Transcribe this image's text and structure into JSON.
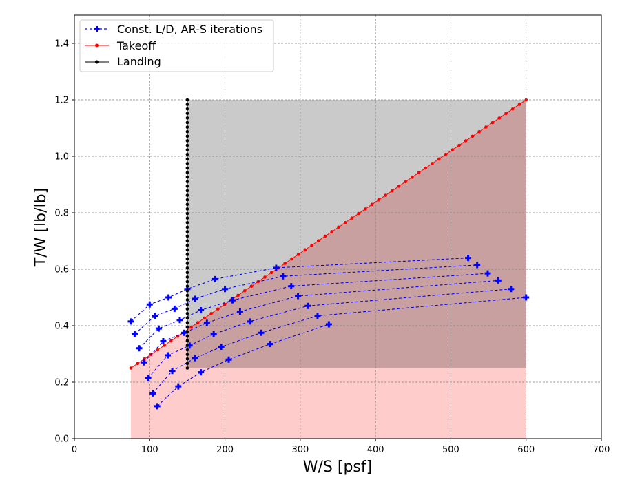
{
  "chart_data": {
    "type": "line",
    "title": "",
    "xlabel": "W/S [psf]",
    "ylabel": "T/W [lb/lb]",
    "xlim": [
      0,
      700
    ],
    "ylim": [
      0,
      1.5
    ],
    "xticks": [
      0,
      100,
      200,
      300,
      400,
      500,
      600,
      700
    ],
    "yticks": [
      0.0,
      0.2,
      0.4,
      0.6,
      0.8,
      1.0,
      1.2,
      1.4
    ],
    "xtick_labels": [
      "0",
      "100",
      "200",
      "300",
      "400",
      "500",
      "600",
      "700"
    ],
    "ytick_labels": [
      "0.0",
      "0.2",
      "0.4",
      "0.6",
      "0.8",
      "1.0",
      "1.2",
      "1.4"
    ],
    "grid": true,
    "legend_position": "top-left",
    "legend": [
      "Const. L/D, AR-S iterations",
      "Takeoff",
      "Landing"
    ],
    "colors": {
      "iterations": "#0000ff",
      "takeoff": "#ff0000",
      "landing": "#000000",
      "grey_region": "#cacaca",
      "pink_region": "#ffcccc",
      "overlap_region": "#c9a0a0"
    },
    "regions": [
      {
        "name": "landing-feasible",
        "x": [
          150,
          600
        ],
        "y": [
          0,
          1.2
        ]
      },
      {
        "name": "takeoff-min-thrust",
        "x": [
          75,
          600
        ],
        "y": [
          0,
          0.25
        ]
      },
      {
        "name": "takeoff-feasible",
        "polygon": [
          [
            75,
            0.25
          ],
          [
            600,
            1.2
          ],
          [
            600,
            0
          ]
        ]
      }
    ],
    "series": [
      {
        "name": "Const. L/D, AR-S iterations",
        "style": "dashed-plus",
        "curves": [
          {
            "x": [
              75,
              100,
              125,
              150,
              187,
              268,
              523
            ],
            "y": [
              0.415,
              0.475,
              0.5,
              0.53,
              0.565,
              0.605,
              0.64
            ]
          },
          {
            "x": [
              80,
              107,
              133,
              160,
              200,
              277,
              535
            ],
            "y": [
              0.37,
              0.435,
              0.46,
              0.495,
              0.53,
              0.575,
              0.615
            ]
          },
          {
            "x": [
              86,
              112,
              140,
              168,
              210,
              288,
              549
            ],
            "y": [
              0.32,
              0.39,
              0.42,
              0.455,
              0.49,
              0.54,
              0.585
            ]
          },
          {
            "x": [
              92,
              118,
              146,
              176,
              220,
              297,
              563
            ],
            "y": [
              0.27,
              0.345,
              0.375,
              0.41,
              0.45,
              0.505,
              0.56
            ]
          },
          {
            "x": [
              98,
              124,
              153,
              185,
              233,
              310,
              580
            ],
            "y": [
              0.215,
              0.295,
              0.33,
              0.37,
              0.415,
              0.47,
              0.53
            ]
          },
          {
            "x": [
              104,
              130,
              160,
              195,
              248,
              323,
              600
            ],
            "y": [
              0.16,
              0.24,
              0.285,
              0.325,
              0.375,
              0.435,
              0.5
            ]
          },
          {
            "x": [
              110,
              138,
              168,
              205,
              260,
              338
            ],
            "y": [
              0.115,
              0.185,
              0.235,
              0.28,
              0.335,
              0.405
            ]
          }
        ]
      },
      {
        "name": "Takeoff",
        "style": "solid-dot",
        "x": [
          75,
          600
        ],
        "y": [
          0.25,
          1.2
        ],
        "n_points": 60
      },
      {
        "name": "Landing",
        "style": "solid-dot",
        "x": [
          150,
          150
        ],
        "y": [
          0.25,
          1.2
        ],
        "n_points": 60
      }
    ]
  }
}
